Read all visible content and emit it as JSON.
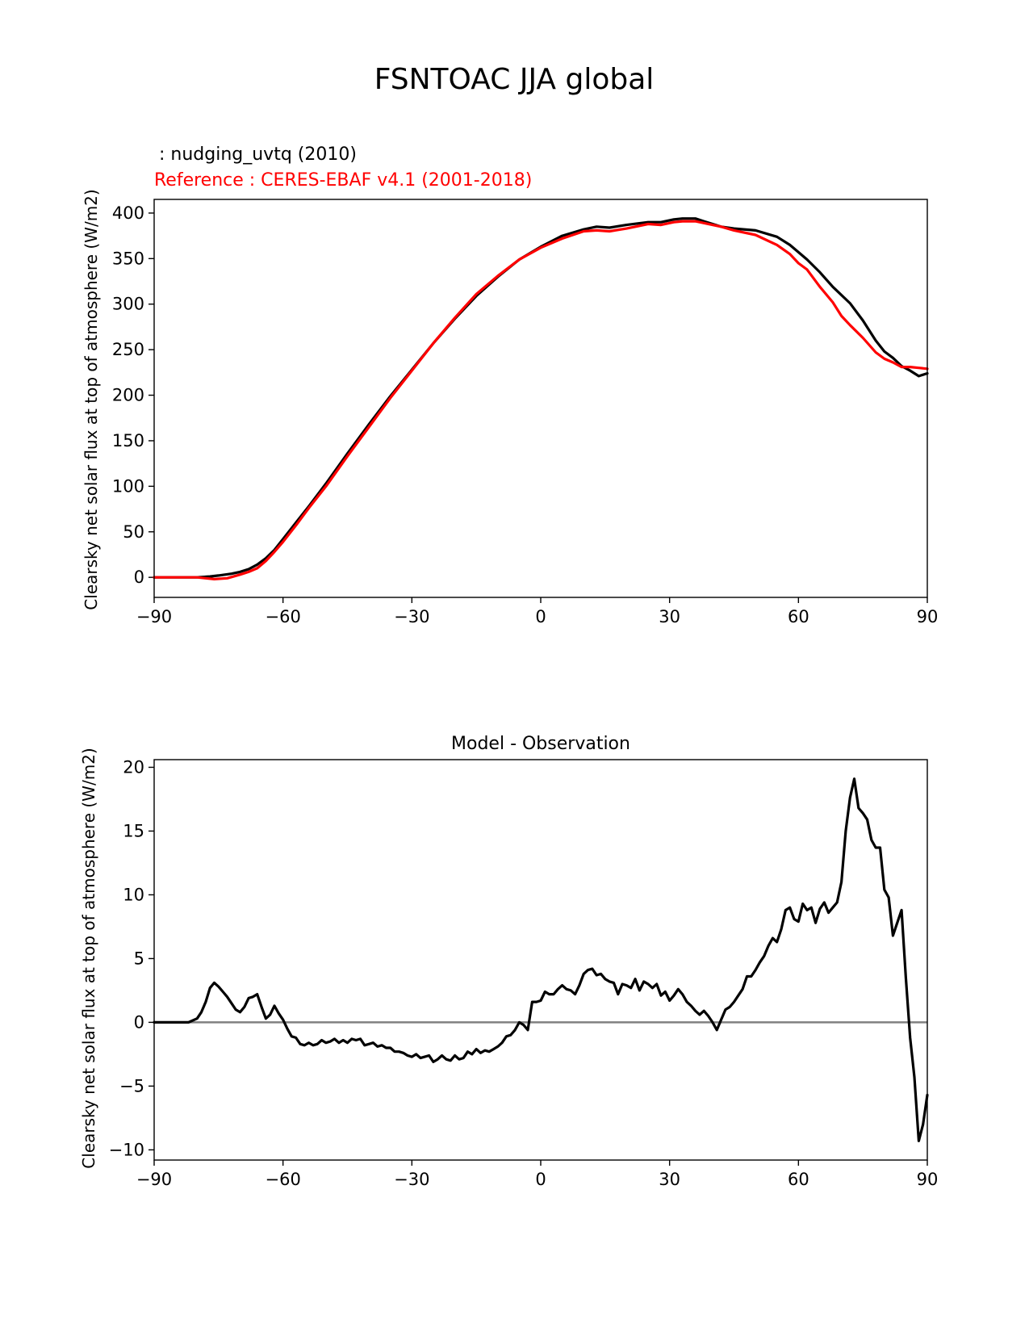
{
  "figure": {
    "title": "FSNTOAC JJA global"
  },
  "chart_data": [
    {
      "type": "line",
      "test_label": " : nudging_uvtq (2010)",
      "reference_label": "Reference : CERES-EBAF v4.1 (2001-2018)",
      "ylabel": "Clearsky net solar flux at top of atmosphere (W/m2)",
      "xlabel": "",
      "xlim": [
        -90,
        90
      ],
      "ylim": [
        -22,
        415
      ],
      "xticks": [
        -90,
        -60,
        -30,
        0,
        30,
        60,
        90
      ],
      "xtick_labels": [
        "−90",
        "−60",
        "−30",
        "0",
        "30",
        "60",
        "90"
      ],
      "yticks": [
        0,
        50,
        100,
        150,
        200,
        250,
        300,
        350,
        400
      ],
      "ytick_labels": [
        "0",
        "50",
        "100",
        "150",
        "200",
        "250",
        "300",
        "350",
        "400"
      ],
      "colors": {
        "test": "#000000",
        "reference": "#ff0000"
      },
      "series": [
        {
          "role": "test",
          "x": [
            -90,
            -85,
            -80,
            -77,
            -75,
            -72,
            -70,
            -68,
            -66,
            -64,
            -62,
            -60,
            -57,
            -54,
            -50,
            -45,
            -40,
            -35,
            -30,
            -25,
            -20,
            -15,
            -10,
            -5,
            0,
            5,
            10,
            13,
            16,
            20,
            25,
            28,
            31,
            33,
            36,
            38,
            42,
            45,
            50,
            55,
            58,
            60,
            62,
            65,
            68,
            72,
            75,
            78,
            80,
            82,
            84,
            86,
            88,
            90
          ],
          "y": [
            0,
            0,
            0,
            1,
            2,
            4,
            6,
            9,
            14,
            21,
            30,
            42,
            60,
            78,
            103,
            136,
            168,
            199,
            228,
            257,
            284,
            309,
            330,
            349,
            363,
            375,
            382,
            385,
            384,
            387,
            390,
            390,
            393,
            394,
            394,
            391,
            385,
            383,
            381,
            374,
            365,
            357,
            349,
            335,
            319,
            301,
            282,
            260,
            248,
            241,
            232,
            227,
            221,
            224
          ]
        },
        {
          "role": "reference",
          "x": [
            -90,
            -85,
            -80,
            -78,
            -76,
            -73,
            -70,
            -68,
            -66,
            -64,
            -62,
            -60,
            -57,
            -54,
            -50,
            -45,
            -40,
            -35,
            -30,
            -25,
            -20,
            -15,
            -10,
            -5,
            0,
            5,
            10,
            13,
            16,
            20,
            25,
            28,
            31,
            33,
            36,
            38,
            42,
            45,
            50,
            55,
            58,
            60,
            62,
            65,
            68,
            70,
            72,
            75,
            78,
            80,
            82,
            84,
            86,
            88,
            90
          ],
          "y": [
            0,
            0,
            0,
            -1,
            -2,
            -1,
            3,
            6,
            10,
            18,
            28,
            39,
            57,
            76,
            100,
            133,
            165,
            197,
            227,
            257,
            285,
            311,
            331,
            349,
            362,
            372,
            380,
            381,
            380,
            383,
            388,
            387,
            390,
            391,
            391,
            389,
            385,
            381,
            376,
            365,
            355,
            345,
            338,
            319,
            302,
            287,
            277,
            263,
            247,
            240,
            236,
            231,
            231,
            230,
            229
          ]
        }
      ]
    },
    {
      "type": "line",
      "title": "Model - Observation",
      "ylabel": "Clearsky net solar flux at top of atmosphere (W/m2)",
      "xlabel": "",
      "xlim": [
        -90,
        90
      ],
      "ylim": [
        -10.8,
        20.6
      ],
      "xticks": [
        -90,
        -60,
        -30,
        0,
        30,
        60,
        90
      ],
      "xtick_labels": [
        "−90",
        "−60",
        "−30",
        "0",
        "30",
        "60",
        "90"
      ],
      "yticks": [
        -10,
        -5,
        0,
        5,
        10,
        15,
        20
      ],
      "ytick_labels": [
        "−10",
        "−5",
        "0",
        "5",
        "10",
        "15",
        "20"
      ],
      "zero_line_color": "#808080",
      "series": [
        {
          "role": "difference",
          "x": [
            -90,
            -82,
            -80,
            -79,
            -78,
            -77,
            -76,
            -75,
            -74,
            -73,
            -72,
            -71,
            -70,
            -69,
            -68,
            -67,
            -66,
            -65,
            -64,
            -63,
            -62,
            -61,
            -60,
            -59,
            -58,
            -57,
            -56,
            -55,
            -54,
            -53,
            -52,
            -51,
            -50,
            -49,
            -48,
            -47,
            -46,
            -45,
            -44,
            -43,
            -42,
            -41,
            -40,
            -39,
            -38,
            -37,
            -36,
            -35,
            -34,
            -33,
            -32,
            -31,
            -30,
            -29,
            -28,
            -27,
            -26,
            -25,
            -24,
            -23,
            -22,
            -21,
            -20,
            -19,
            -18,
            -17,
            -16,
            -15,
            -14,
            -13,
            -12,
            -11,
            -10,
            -9,
            -8,
            -7,
            -6,
            -5,
            -4,
            -3,
            -2,
            -1,
            0,
            1,
            2,
            3,
            4,
            5,
            6,
            7,
            8,
            9,
            10,
            11,
            12,
            13,
            14,
            15,
            16,
            17,
            18,
            19,
            20,
            21,
            22,
            23,
            24,
            25,
            26,
            27,
            28,
            29,
            30,
            31,
            32,
            33,
            34,
            35,
            36,
            37,
            38,
            39,
            40,
            41,
            42,
            43,
            44,
            45,
            46,
            47,
            48,
            49,
            50,
            51,
            52,
            53,
            54,
            55,
            56,
            57,
            58,
            59,
            60,
            61,
            62,
            63,
            64,
            65,
            66,
            67,
            68,
            69,
            70,
            71,
            72,
            73,
            74,
            75,
            76,
            77,
            78,
            79,
            80,
            81,
            82,
            83,
            84,
            85,
            86,
            87,
            88,
            89,
            90
          ],
          "y": [
            0,
            0,
            0.3,
            0.8,
            1.6,
            2.7,
            3.1,
            2.8,
            2.4,
            2.0,
            1.5,
            1.0,
            0.8,
            1.2,
            1.9,
            2.0,
            2.2,
            1.2,
            0.3,
            0.6,
            1.3,
            0.7,
            0.2,
            -0.5,
            -1.1,
            -1.2,
            -1.7,
            -1.8,
            -1.6,
            -1.8,
            -1.7,
            -1.4,
            -1.6,
            -1.5,
            -1.3,
            -1.6,
            -1.4,
            -1.6,
            -1.3,
            -1.4,
            -1.3,
            -1.8,
            -1.7,
            -1.6,
            -1.9,
            -1.8,
            -2.0,
            -2.0,
            -2.3,
            -2.3,
            -2.4,
            -2.6,
            -2.7,
            -2.5,
            -2.8,
            -2.7,
            -2.6,
            -3.1,
            -2.9,
            -2.6,
            -2.9,
            -3.0,
            -2.6,
            -2.9,
            -2.8,
            -2.3,
            -2.5,
            -2.1,
            -2.4,
            -2.2,
            -2.3,
            -2.1,
            -1.9,
            -1.6,
            -1.1,
            -1.0,
            -0.6,
            0.0,
            -0.2,
            -0.6,
            1.6,
            1.6,
            1.7,
            2.4,
            2.2,
            2.2,
            2.6,
            2.9,
            2.6,
            2.5,
            2.2,
            2.9,
            3.8,
            4.1,
            4.2,
            3.7,
            3.8,
            3.4,
            3.2,
            3.1,
            2.2,
            3.0,
            2.9,
            2.7,
            3.4,
            2.5,
            3.2,
            3.0,
            2.7,
            3.0,
            2.1,
            2.4,
            1.7,
            2.1,
            2.6,
            2.2,
            1.6,
            1.3,
            0.9,
            0.6,
            0.9,
            0.5,
            0.0,
            -0.6,
            0.2,
            1.0,
            1.2,
            1.6,
            2.1,
            2.6,
            3.6,
            3.6,
            4.1,
            4.7,
            5.2,
            6.0,
            6.6,
            6.3,
            7.3,
            8.8,
            9.0,
            8.1,
            7.9,
            9.3,
            8.8,
            9.0,
            7.8,
            8.9,
            9.4,
            8.6,
            9.0,
            9.4,
            11.0,
            15.0,
            17.6,
            19.1,
            16.8,
            16.4,
            15.9,
            14.3,
            13.7,
            13.7,
            10.4,
            9.8,
            6.8,
            7.8,
            8.8,
            3.5,
            -1.2,
            -4.3,
            -9.3,
            -8.0,
            -5.7
          ]
        }
      ]
    }
  ]
}
